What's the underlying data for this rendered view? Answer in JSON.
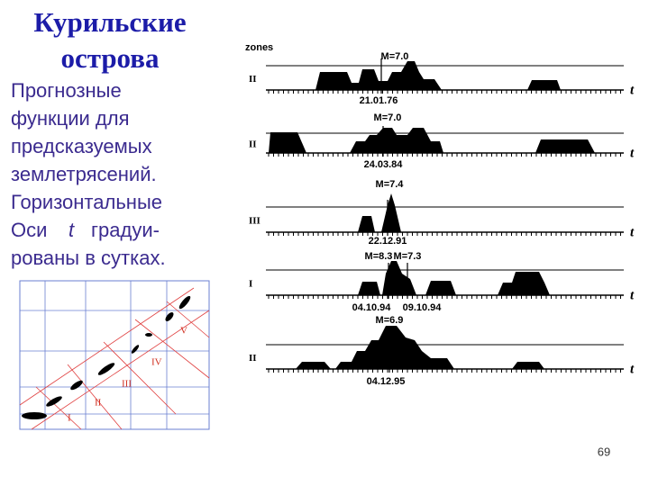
{
  "title": [
    "Курильские",
    "острова"
  ],
  "body": [
    "Прогнозные",
    "функции для",
    "предсказуемых",
    "землетрясений.",
    "Горизонтальные"
  ],
  "body_axis": {
    "before": "Оси",
    "symbol": "t",
    "after": "градуи-"
  },
  "body_end": "рованы в сутках.",
  "panels_header": "zones",
  "panels": [
    {
      "zone": "II",
      "magnitudes": [
        "M=7.0"
      ],
      "dates": [
        "21.01.76"
      ],
      "axis": "t"
    },
    {
      "zone": "II",
      "magnitudes": [
        "M=7.0"
      ],
      "dates": [
        "24.03.84"
      ],
      "axis": "t"
    },
    {
      "zone": "III",
      "magnitudes": [
        "M=7.4"
      ],
      "dates": [
        "22.12.91"
      ],
      "axis": "t"
    },
    {
      "zone": "I",
      "magnitudes": [
        "M=8.3",
        "M=7.3"
      ],
      "dates": [
        "04.10.94",
        "09.10.94"
      ],
      "axis": "t"
    },
    {
      "zone": "II",
      "magnitudes": [
        "M=6.9"
      ],
      "dates": [
        "04.12.95"
      ],
      "axis": "t"
    }
  ],
  "map": {
    "zones": [
      "I",
      "II",
      "III",
      "IV",
      "V"
    ]
  },
  "page_number": "69"
}
